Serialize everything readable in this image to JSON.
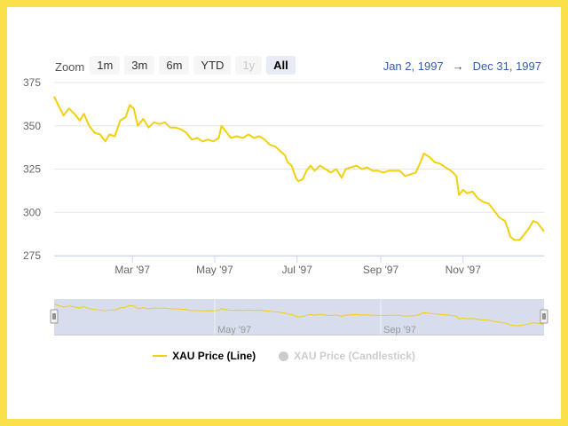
{
  "zoom": {
    "label": "Zoom",
    "buttons": [
      {
        "label": "1m",
        "state": "normal"
      },
      {
        "label": "3m",
        "state": "normal"
      },
      {
        "label": "6m",
        "state": "normal"
      },
      {
        "label": "YTD",
        "state": "normal"
      },
      {
        "label": "1y",
        "state": "disabled"
      },
      {
        "label": "All",
        "state": "active"
      }
    ]
  },
  "range": {
    "from": "Jan 2, 1997",
    "separator": "→",
    "to": "Dec 31, 1997"
  },
  "colors": {
    "line": "#f2d00c",
    "navigator_mask": "#d3d9ea",
    "background": "#fbe04b",
    "range_text": "#335cad"
  },
  "chart_data": {
    "type": "line",
    "title": "",
    "ylim": [
      275,
      375
    ],
    "y_ticks": [
      "375",
      "350",
      "325",
      "300",
      "275"
    ],
    "x_ticks": [
      "Mar '97",
      "May '97",
      "Jul '97",
      "Sep '97",
      "Nov '97"
    ],
    "navigator_ticks": [
      "May '97",
      "Sep '97"
    ],
    "series": [
      {
        "name": "XAU Price (Line)",
        "visible": true,
        "points": [
          [
            "1997-01-02",
            367
          ],
          [
            "1997-01-05",
            362
          ],
          [
            "1997-01-09",
            356
          ],
          [
            "1997-01-13",
            360
          ],
          [
            "1997-01-17",
            357
          ],
          [
            "1997-01-21",
            353
          ],
          [
            "1997-01-24",
            357
          ],
          [
            "1997-01-28",
            350
          ],
          [
            "1997-02-01",
            346
          ],
          [
            "1997-02-05",
            345
          ],
          [
            "1997-02-09",
            341
          ],
          [
            "1997-02-12",
            345
          ],
          [
            "1997-02-16",
            344
          ],
          [
            "1997-02-20",
            353
          ],
          [
            "1997-02-24",
            355
          ],
          [
            "1997-02-27",
            362
          ],
          [
            "1997-03-02",
            360
          ],
          [
            "1997-03-05",
            350
          ],
          [
            "1997-03-09",
            354
          ],
          [
            "1997-03-13",
            349
          ],
          [
            "1997-03-17",
            352
          ],
          [
            "1997-03-21",
            351
          ],
          [
            "1997-03-25",
            352
          ],
          [
            "1997-03-29",
            349
          ],
          [
            "1997-04-02",
            349
          ],
          [
            "1997-04-06",
            348
          ],
          [
            "1997-04-10",
            346
          ],
          [
            "1997-04-14",
            342
          ],
          [
            "1997-04-18",
            343
          ],
          [
            "1997-04-22",
            341
          ],
          [
            "1997-04-26",
            342
          ],
          [
            "1997-04-30",
            341
          ],
          [
            "1997-05-04",
            343
          ],
          [
            "1997-05-06",
            350
          ],
          [
            "1997-05-09",
            347
          ],
          [
            "1997-05-13",
            343
          ],
          [
            "1997-05-17",
            344
          ],
          [
            "1997-05-22",
            343
          ],
          [
            "1997-05-26",
            345
          ],
          [
            "1997-05-30",
            343
          ],
          [
            "1997-06-03",
            344
          ],
          [
            "1997-06-07",
            342
          ],
          [
            "1997-06-11",
            339
          ],
          [
            "1997-06-15",
            338
          ],
          [
            "1997-06-19",
            335
          ],
          [
            "1997-06-22",
            333
          ],
          [
            "1997-06-24",
            329
          ],
          [
            "1997-06-27",
            327
          ],
          [
            "1997-06-30",
            320
          ],
          [
            "1997-07-02",
            318
          ],
          [
            "1997-07-05",
            319
          ],
          [
            "1997-07-08",
            324
          ],
          [
            "1997-07-11",
            327
          ],
          [
            "1997-07-14",
            324
          ],
          [
            "1997-07-18",
            327
          ],
          [
            "1997-07-22",
            325
          ],
          [
            "1997-07-26",
            323
          ],
          [
            "1997-07-30",
            325
          ],
          [
            "1997-08-03",
            320
          ],
          [
            "1997-08-06",
            325
          ],
          [
            "1997-08-10",
            326
          ],
          [
            "1997-08-14",
            327
          ],
          [
            "1997-08-18",
            325
          ],
          [
            "1997-08-22",
            326
          ],
          [
            "1997-08-26",
            324
          ],
          [
            "1997-08-30",
            324
          ],
          [
            "1997-09-03",
            323
          ],
          [
            "1997-09-07",
            324
          ],
          [
            "1997-09-11",
            324
          ],
          [
            "1997-09-15",
            324
          ],
          [
            "1997-09-19",
            321
          ],
          [
            "1997-09-23",
            322
          ],
          [
            "1997-09-27",
            323
          ],
          [
            "1997-10-01",
            330
          ],
          [
            "1997-10-03",
            334
          ],
          [
            "1997-10-07",
            332
          ],
          [
            "1997-10-11",
            329
          ],
          [
            "1997-10-15",
            328
          ],
          [
            "1997-10-19",
            326
          ],
          [
            "1997-10-23",
            324
          ],
          [
            "1997-10-27",
            321
          ],
          [
            "1997-10-29",
            310
          ],
          [
            "1997-11-01",
            313
          ],
          [
            "1997-11-04",
            311
          ],
          [
            "1997-11-08",
            312
          ],
          [
            "1997-11-12",
            308
          ],
          [
            "1997-11-16",
            306
          ],
          [
            "1997-11-20",
            305
          ],
          [
            "1997-11-24",
            301
          ],
          [
            "1997-11-28",
            297
          ],
          [
            "1997-12-02",
            295
          ],
          [
            "1997-12-04",
            291
          ],
          [
            "1997-12-06",
            286
          ],
          [
            "1997-12-09",
            284
          ],
          [
            "1997-12-13",
            284
          ],
          [
            "1997-12-17",
            288
          ],
          [
            "1997-12-20",
            291
          ],
          [
            "1997-12-23",
            295
          ],
          [
            "1997-12-26",
            294
          ],
          [
            "1997-12-31",
            289
          ]
        ]
      },
      {
        "name": "XAU Price (Candlestick)",
        "visible": false,
        "points": []
      }
    ]
  }
}
